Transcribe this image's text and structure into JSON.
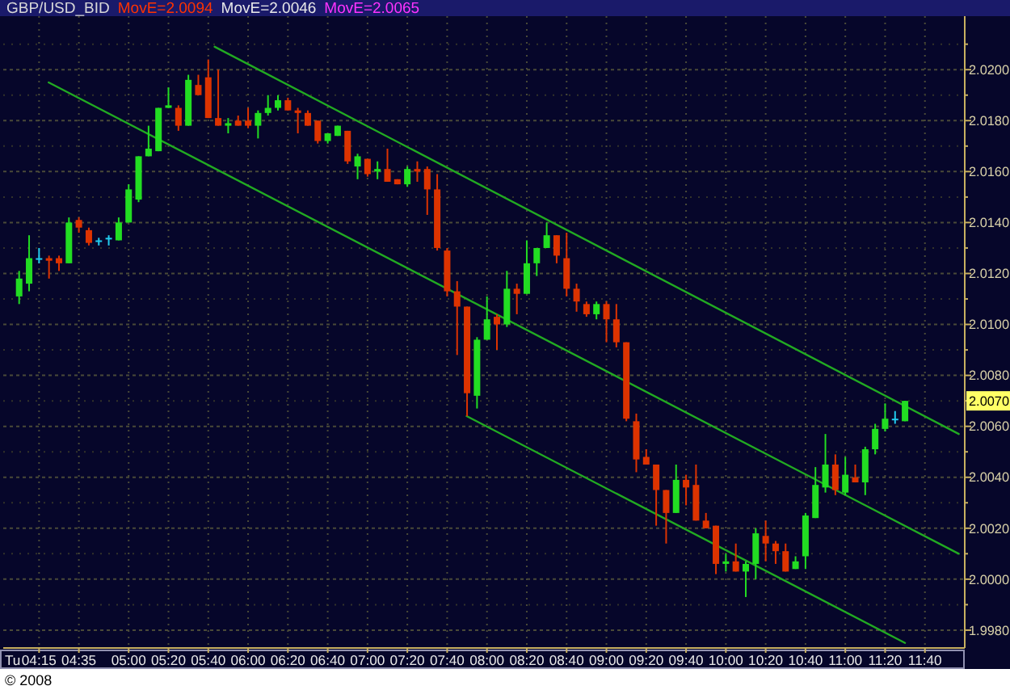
{
  "chart_data": {
    "type": "candlestick",
    "title": "GBP/USD_BID",
    "x": [
      4.0833,
      4.1667,
      4.25,
      4.3333,
      4.4167,
      4.5,
      4.5833,
      4.6667,
      4.75,
      4.8333,
      4.9167,
      5,
      5.0833,
      5.1667,
      5.25,
      5.3333,
      5.4167,
      5.5,
      5.5833,
      5.6667,
      5.75,
      5.8333,
      5.9167,
      6,
      6.0833,
      6.1667,
      6.25,
      6.3333,
      6.4167,
      6.5,
      6.5833,
      6.6667,
      6.75,
      6.8333,
      6.9167,
      7,
      7.0833,
      7.1667,
      7.25,
      7.3333,
      7.4167,
      7.5,
      7.5833,
      7.6667,
      7.75,
      7.8333,
      7.9167,
      8,
      8.0833,
      8.1667,
      8.25,
      8.3333,
      8.4167,
      8.5,
      8.5833,
      8.6667,
      8.75,
      8.8333,
      8.9167,
      9,
      9.0833,
      9.1667,
      9.25,
      9.3333,
      9.4167,
      9.5,
      9.5833,
      9.6667,
      9.75,
      9.8333,
      9.9167,
      10,
      10.0833,
      10.1667,
      10.25,
      10.3333,
      10.4167,
      10.5,
      10.5833,
      10.6667,
      10.75,
      10.8333,
      10.9167,
      11,
      11.0833,
      11.1667,
      11.25,
      11.3333,
      11.4167,
      11.5
    ],
    "ohlc": [
      [
        2.0111,
        2.0121,
        2.0108,
        2.0118
      ],
      [
        2.0116,
        2.0135,
        2.0113,
        2.0126
      ],
      [
        2.0126,
        2.013,
        2.0124,
        2.0126
      ],
      [
        2.0126,
        2.0127,
        2.0118,
        2.0125
      ],
      [
        2.0126,
        2.0127,
        2.0121,
        2.0124
      ],
      [
        2.0124,
        2.0142,
        2.0124,
        2.014
      ],
      [
        2.0141,
        2.0142,
        2.0136,
        2.0138
      ],
      [
        2.0137,
        2.0138,
        2.0131,
        2.0132
      ],
      [
        2.0133,
        2.0134,
        2.0131,
        2.0133
      ],
      [
        2.0134,
        2.0135,
        2.0131,
        2.0134
      ],
      [
        2.0133,
        2.0142,
        2.0133,
        2.014
      ],
      [
        2.014,
        2.0155,
        2.014,
        2.0153
      ],
      [
        2.0149,
        2.0166,
        2.0148,
        2.0166
      ],
      [
        2.0166,
        2.0178,
        2.0166,
        2.0169
      ],
      [
        2.0168,
        2.0185,
        2.0168,
        2.0185
      ],
      [
        2.0185,
        2.0193,
        2.0185,
        2.0186
      ],
      [
        2.0185,
        2.0186,
        2.0176,
        2.0178
      ],
      [
        2.0178,
        2.0198,
        2.0178,
        2.0196
      ],
      [
        2.0194,
        2.0198,
        2.019,
        2.019
      ],
      [
        2.0197,
        2.0204,
        2.0181,
        2.0181
      ],
      [
        2.0181,
        2.02,
        2.0178,
        2.0178
      ],
      [
        2.0178,
        2.0181,
        2.0175,
        2.0179
      ],
      [
        2.018,
        2.0182,
        2.0178,
        2.0178
      ],
      [
        2.018,
        2.0185,
        2.0177,
        2.0178
      ],
      [
        2.0178,
        2.0184,
        2.0173,
        2.0183
      ],
      [
        2.0183,
        2.019,
        2.0182,
        2.0185
      ],
      [
        2.0185,
        2.019,
        2.0184,
        2.0188
      ],
      [
        2.0188,
        2.0189,
        2.0184,
        2.0184
      ],
      [
        2.0184,
        2.0185,
        2.0175,
        2.0183
      ],
      [
        2.0183,
        2.0184,
        2.0178,
        2.0178
      ],
      [
        2.018,
        2.018,
        2.0171,
        2.0172
      ],
      [
        2.0172,
        2.0175,
        2.0171,
        2.0175
      ],
      [
        2.0174,
        2.0178,
        2.0174,
        2.0178
      ],
      [
        2.0176,
        2.0176,
        2.0163,
        2.0164
      ],
      [
        2.0162,
        2.0167,
        2.0157,
        2.0166
      ],
      [
        2.0165,
        2.0165,
        2.0158,
        2.0159
      ],
      [
        2.016,
        2.0164,
        2.0157,
        2.0161
      ],
      [
        2.0161,
        2.0169,
        2.0156,
        2.0156
      ],
      [
        2.0157,
        2.0157,
        2.0155,
        2.0155
      ],
      [
        2.0155,
        2.0162,
        2.0154,
        2.0161
      ],
      [
        2.0161,
        2.0164,
        2.0156,
        2.016
      ],
      [
        2.0161,
        2.0162,
        2.0143,
        2.0153
      ],
      [
        2.0153,
        2.0159,
        2.0129,
        2.013
      ],
      [
        2.0129,
        2.013,
        2.0111,
        2.0113
      ],
      [
        2.0113,
        2.0117,
        2.0088,
        2.0107
      ],
      [
        2.0107,
        2.0107,
        2.0064,
        2.0073
      ],
      [
        2.0072,
        2.0095,
        2.0067,
        2.0094
      ],
      [
        2.0094,
        2.0111,
        2.0094,
        2.0102
      ],
      [
        2.0103,
        2.0104,
        2.009,
        2.01
      ],
      [
        2.01,
        2.0121,
        2.0099,
        2.0114
      ],
      [
        2.0114,
        2.0116,
        2.0104,
        2.0112
      ],
      [
        2.0112,
        2.0133,
        2.0112,
        2.0124
      ],
      [
        2.0124,
        2.013,
        2.0119,
        2.013
      ],
      [
        2.013,
        2.014,
        2.013,
        2.0135
      ],
      [
        2.0135,
        2.0135,
        2.0124,
        2.0127
      ],
      [
        2.0126,
        2.0136,
        2.0111,
        2.0114
      ],
      [
        2.0114,
        2.0116,
        2.0105,
        2.0109
      ],
      [
        2.0108,
        2.0109,
        2.0103,
        2.0104
      ],
      [
        2.0104,
        2.0109,
        2.0102,
        2.0108
      ],
      [
        2.0108,
        2.0109,
        2.0093,
        2.0102
      ],
      [
        2.0102,
        2.0108,
        2.0091,
        2.0093
      ],
      [
        2.0093,
        2.0093,
        2.0062,
        2.0063
      ],
      [
        2.0062,
        2.0065,
        2.0042,
        2.0047
      ],
      [
        2.0048,
        2.0051,
        2.0045,
        2.0045
      ],
      [
        2.0045,
        2.0045,
        2.0021,
        2.0035
      ],
      [
        2.0035,
        2.0035,
        2.0014,
        2.0026
      ],
      [
        2.0026,
        2.0045,
        2.0026,
        2.0039
      ],
      [
        2.0039,
        2.0041,
        2.0029,
        2.0036
      ],
      [
        2.0037,
        2.0045,
        2.0023,
        2.0023
      ],
      [
        2.0023,
        2.0026,
        2.002,
        2.002
      ],
      [
        2.0021,
        2.0021,
        2.0002,
        2.0006
      ],
      [
        2.0006,
        2.001,
        2.0003,
        2.0007
      ],
      [
        2.0007,
        2.0014,
        2.0003,
        2.0003
      ],
      [
        2.0003,
        2.0007,
        1.9993,
        2.0006
      ],
      [
        2.0006,
        2.002,
        2.0,
        2.0018
      ],
      [
        2.0017,
        2.0023,
        2.0007,
        2.0014
      ],
      [
        2.0014,
        2.0015,
        2.0006,
        2.0011
      ],
      [
        2.0011,
        2.0014,
        2.0003,
        2.0003
      ],
      [
        2.0004,
        2.0009,
        2.0004,
        2.0007
      ],
      [
        2.0009,
        2.0026,
        2.0004,
        2.0025
      ],
      [
        2.0024,
        2.0044,
        2.0024,
        2.0037
      ],
      [
        2.0036,
        2.0057,
        2.0034,
        2.0045
      ],
      [
        2.0045,
        2.0049,
        2.0033,
        2.0035
      ],
      [
        2.0034,
        2.0048,
        2.0033,
        2.0041
      ],
      [
        2.004,
        2.0045,
        2.0038,
        2.0038
      ],
      [
        2.0038,
        2.0052,
        2.0033,
        2.0051
      ],
      [
        2.0051,
        2.0061,
        2.0049,
        2.0059
      ],
      [
        2.0059,
        2.0069,
        2.0058,
        2.0063
      ],
      [
        2.0063,
        2.0066,
        2.0061,
        2.0063
      ],
      [
        2.0062,
        2.007,
        2.0062,
        2.007
      ]
    ],
    "colors": [
      "#22dd22",
      "#22dd22",
      "#22ccee",
      "#dd3300",
      "#dd3300",
      "#22dd22",
      "#dd3300",
      "#dd3300",
      "#22ccee",
      "#22ccee",
      "#22dd22",
      "#22dd22",
      "#22dd22",
      "#22dd22",
      "#22dd22",
      "#22dd22",
      "#dd3300",
      "#22dd22",
      "#dd3300",
      "#dd3300",
      "#dd3300",
      "#22dd22",
      "#dd3300",
      "#dd3300",
      "#22dd22",
      "#22dd22",
      "#22dd22",
      "#dd3300",
      "#dd3300",
      "#dd3300",
      "#dd3300",
      "#22dd22",
      "#22dd22",
      "#dd3300",
      "#22dd22",
      "#dd3300",
      "#22dd22",
      "#dd3300",
      "#dd3300",
      "#22dd22",
      "#dd3300",
      "#dd3300",
      "#dd3300",
      "#dd3300",
      "#dd3300",
      "#dd3300",
      "#22dd22",
      "#22dd22",
      "#dd3300",
      "#22dd22",
      "#dd3300",
      "#22dd22",
      "#22dd22",
      "#22dd22",
      "#dd3300",
      "#dd3300",
      "#dd3300",
      "#dd3300",
      "#22dd22",
      "#dd3300",
      "#dd3300",
      "#dd3300",
      "#dd3300",
      "#dd3300",
      "#dd3300",
      "#dd3300",
      "#22dd22",
      "#dd3300",
      "#dd3300",
      "#dd3300",
      "#dd3300",
      "#22dd22",
      "#dd3300",
      "#22dd22",
      "#22dd22",
      "#dd3300",
      "#dd3300",
      "#dd3300",
      "#22dd22",
      "#22dd22",
      "#22dd22",
      "#22dd22",
      "#dd3300",
      "#22dd22",
      "#dd3300",
      "#22dd22",
      "#22dd22",
      "#22dd22",
      "#22ccee",
      "#22dd22"
    ],
    "series": [
      {
        "type": "line",
        "color": "#22aa22",
        "x": [
          5.72,
          11.95
        ],
        "values": [
          2.0209,
          2.0057
        ]
      },
      {
        "type": "line",
        "color": "#22aa22",
        "x": [
          4.33,
          11.95
        ],
        "values": [
          2.0195,
          2.001
        ]
      },
      {
        "type": "line",
        "color": "#22aa22",
        "x": [
          7.83,
          11.5
        ],
        "values": [
          2.0064,
          1.9975
        ]
      }
    ],
    "xlim": [
      3.95,
      12.0
    ],
    "xticks": [
      {
        "value": 4.25,
        "label": "04:15"
      },
      {
        "value": 4.5833,
        "label": "04:35"
      },
      {
        "value": 5,
        "label": "05:00"
      },
      {
        "value": 5.3333,
        "label": "05:20"
      },
      {
        "value": 5.6667,
        "label": "05:40"
      },
      {
        "value": 6,
        "label": "06:00"
      },
      {
        "value": 6.3333,
        "label": "06:20"
      },
      {
        "value": 6.6667,
        "label": "06:40"
      },
      {
        "value": 7,
        "label": "07:00"
      },
      {
        "value": 7.3333,
        "label": "07:20"
      },
      {
        "value": 7.6667,
        "label": "07:40"
      },
      {
        "value": 8,
        "label": "08:00"
      },
      {
        "value": 8.3333,
        "label": "08:20"
      },
      {
        "value": 8.6667,
        "label": "08:40"
      },
      {
        "value": 9,
        "label": "09:00"
      },
      {
        "value": 9.3333,
        "label": "09:20"
      },
      {
        "value": 9.6667,
        "label": "09:40"
      },
      {
        "value": 10,
        "label": "10:00"
      },
      {
        "value": 10.3333,
        "label": "10:20"
      },
      {
        "value": 10.6667,
        "label": "10:40"
      },
      {
        "value": 11,
        "label": "11:00"
      },
      {
        "value": 11.3333,
        "label": "11:20"
      },
      {
        "value": 11.6667,
        "label": "11:40"
      }
    ],
    "ylim": [
      1.9973,
      2.0221
    ],
    "yticks": [
      {
        "value": 1.998,
        "label": "1.9980"
      },
      {
        "value": 1.999,
        "label": null
      },
      {
        "value": 2.0,
        "label": "2.0000"
      },
      {
        "value": 2.001,
        "label": null
      },
      {
        "value": 2.002,
        "label": "2.0020"
      },
      {
        "value": 2.003,
        "label": null
      },
      {
        "value": 2.004,
        "label": "2.0040"
      },
      {
        "value": 2.005,
        "label": null
      },
      {
        "value": 2.006,
        "label": "2.0060"
      },
      {
        "value": 2.007,
        "label": null
      },
      {
        "value": 2.008,
        "label": "2.0080"
      },
      {
        "value": 2.009,
        "label": null
      },
      {
        "value": 2.01,
        "label": "2.0100"
      },
      {
        "value": 2.011,
        "label": null
      },
      {
        "value": 2.012,
        "label": "2.0120"
      },
      {
        "value": 2.013,
        "label": null
      },
      {
        "value": 2.014,
        "label": "2.0140"
      },
      {
        "value": 2.015,
        "label": null
      },
      {
        "value": 2.016,
        "label": "2.0160"
      },
      {
        "value": 2.017,
        "label": null
      },
      {
        "value": 2.018,
        "label": "2.0180"
      },
      {
        "value": 2.019,
        "label": null
      },
      {
        "value": 2.02,
        "label": "2.0200"
      },
      {
        "value": 2.021,
        "label": null
      }
    ],
    "grid": true,
    "annotations": [
      "MovE=2.0094",
      "MovE=2.0046",
      "MovE=2.0065",
      {
        "text": "2.0070",
        "y": 2.007
      },
      "Tu",
      "© 2008"
    ]
  }
}
